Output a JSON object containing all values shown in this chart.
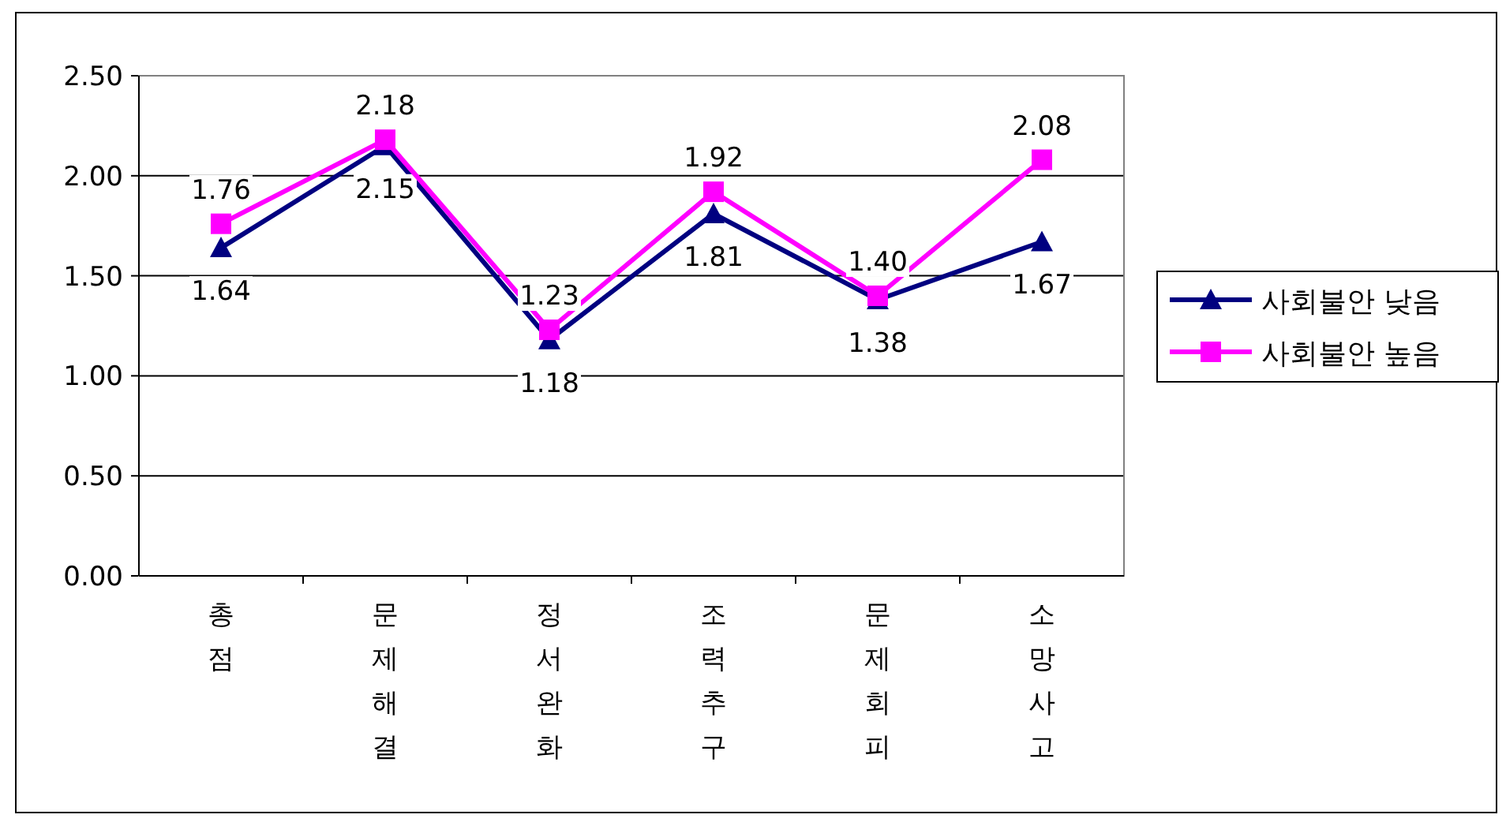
{
  "chart_data": {
    "type": "line",
    "categories": [
      "총점",
      "문제해결",
      "정서완화",
      "조력추구",
      "문제회피",
      "소망사고"
    ],
    "series": [
      {
        "name": "사회불안 낮음",
        "color": "#000080",
        "marker": "triangle",
        "values": [
          1.64,
          2.15,
          1.18,
          1.81,
          1.38,
          1.67
        ],
        "value_labels": [
          "1.64",
          "2.15",
          "1.18",
          "1.81",
          "1.38",
          "1.67"
        ]
      },
      {
        "name": "사회불안 높음",
        "color": "#ff00ff",
        "marker": "square",
        "values": [
          1.76,
          2.18,
          1.23,
          1.92,
          1.4,
          2.08
        ],
        "value_labels": [
          "1.76",
          "2.18",
          "1.23",
          "1.92",
          "1.40",
          "2.08"
        ]
      }
    ],
    "ylim": [
      0,
      2.5
    ],
    "yticks": [
      {
        "value": 0,
        "label": "0.00"
      },
      {
        "value": 0.5,
        "label": "0.50"
      },
      {
        "value": 1,
        "label": "1.00"
      },
      {
        "value": 1.5,
        "label": "1.50"
      },
      {
        "value": 2,
        "label": "2.00"
      },
      {
        "value": 2.5,
        "label": "2.50"
      }
    ],
    "grid": "y",
    "legend": "right",
    "line_style": "solid"
  }
}
